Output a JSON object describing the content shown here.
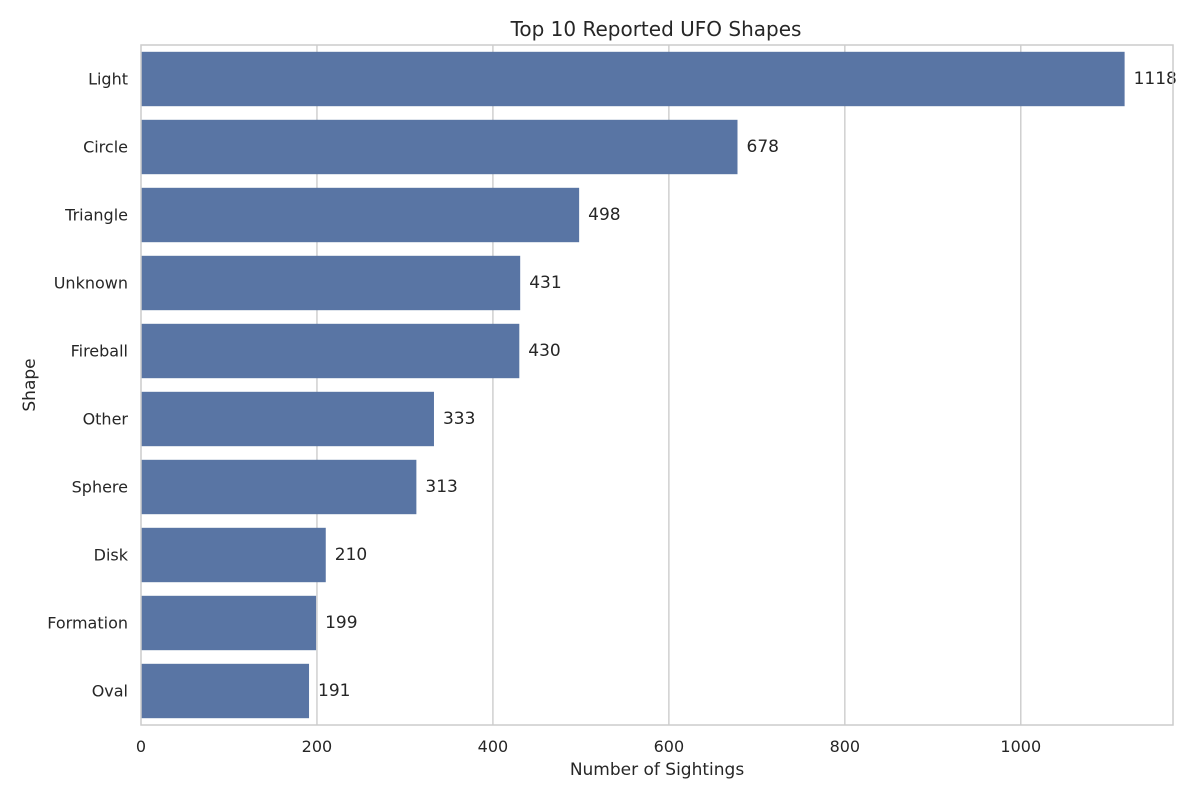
{
  "chart_data": {
    "type": "bar",
    "orientation": "horizontal",
    "title": "Top 10 Reported UFO Shapes",
    "xlabel": "Number of Sightings",
    "ylabel": "Shape",
    "categories": [
      "Light",
      "Circle",
      "Triangle",
      "Unknown",
      "Fireball",
      "Other",
      "Sphere",
      "Disk",
      "Formation",
      "Oval"
    ],
    "values": [
      1118,
      678,
      498,
      431,
      430,
      333,
      313,
      210,
      199,
      191
    ],
    "data_labels": [
      "1118",
      "678",
      "498",
      "431",
      "430",
      "333",
      "313",
      "210",
      "199",
      "191"
    ],
    "xlim": [
      0,
      1173
    ],
    "xticks": [
      0,
      200,
      400,
      600,
      800,
      1000
    ],
    "xtick_labels": [
      "0",
      "200",
      "400",
      "600",
      "800",
      "1000"
    ],
    "grid": "vertical",
    "legend": "none",
    "bar_color": "#5975a4",
    "grid_color": "#cccccc",
    "text_color": "#262626"
  }
}
